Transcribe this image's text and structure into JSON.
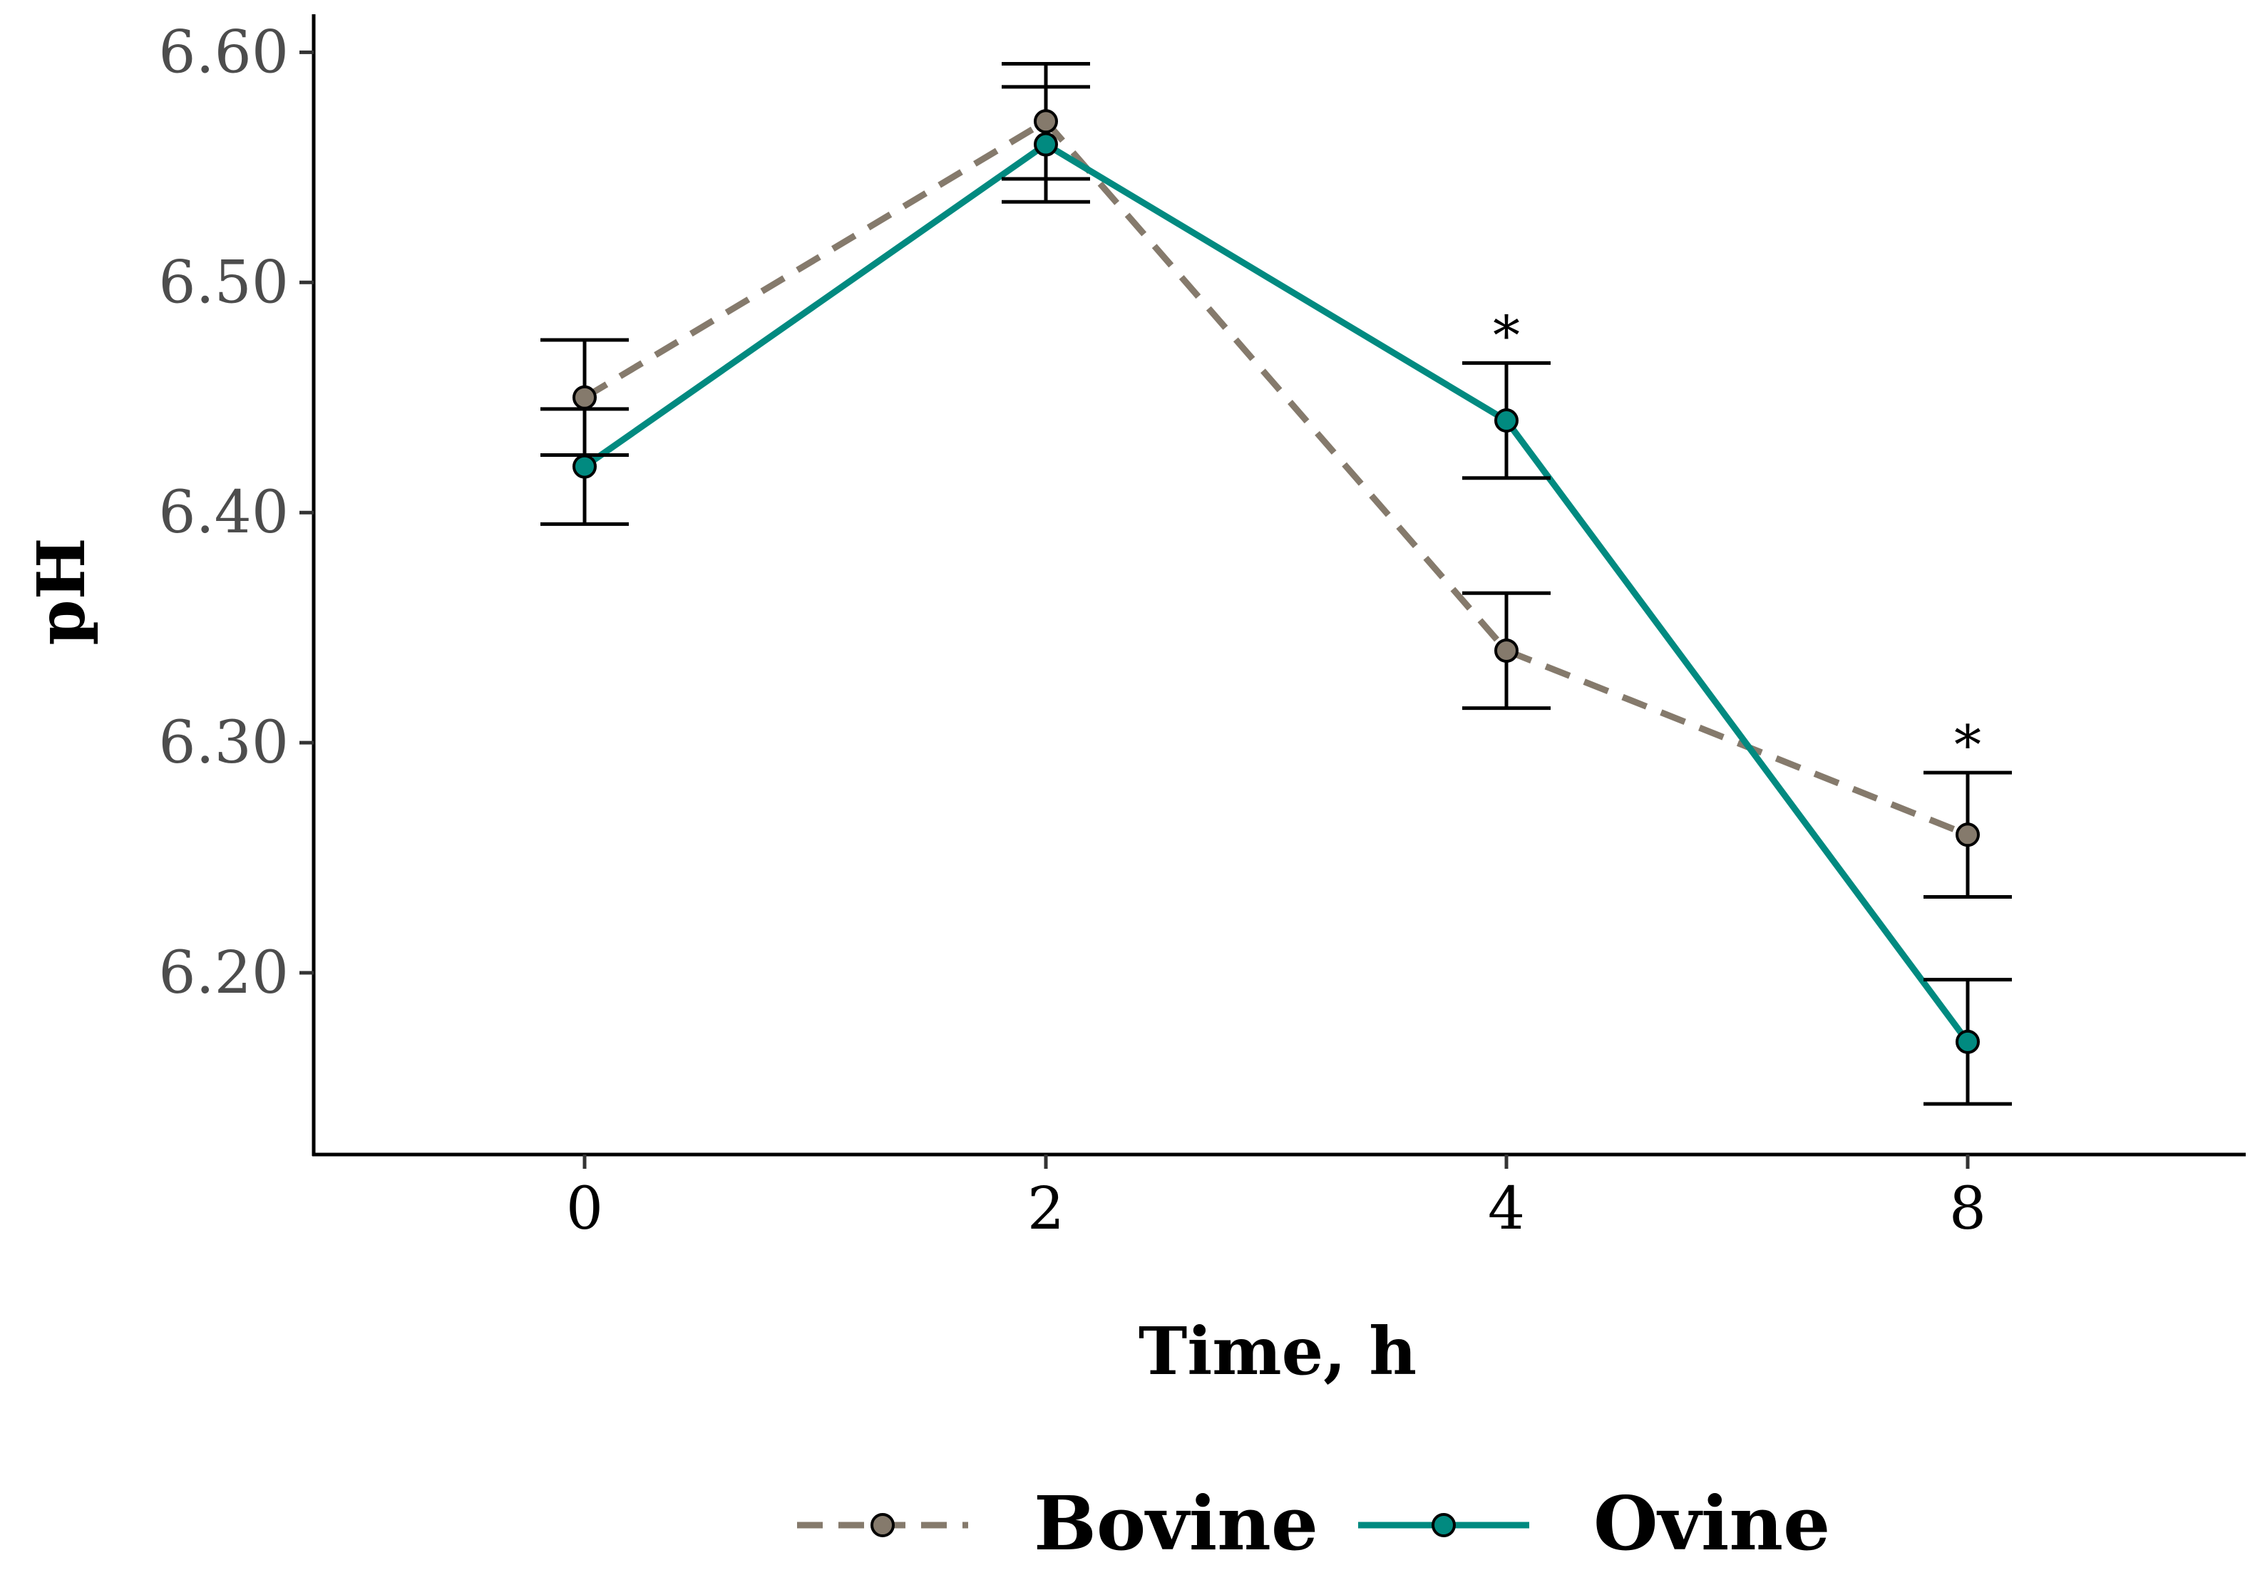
{
  "chart_data": {
    "type": "line",
    "xlabel": "Time, h",
    "ylabel": "pH",
    "categories": [
      "0",
      "2",
      "4",
      "8"
    ],
    "ylim": [
      6.1,
      6.62
    ],
    "yticks": [
      "6.20",
      "6.30",
      "6.40",
      "6.50",
      "6.60"
    ],
    "grid": false,
    "legend_position": "bottom",
    "significance_markers": [
      {
        "category": "4",
        "label": "*"
      },
      {
        "category": "8",
        "label": "*"
      }
    ],
    "series": [
      {
        "name": "Bovine",
        "color": "#857a6c",
        "line_style": "dashed",
        "values": [
          6.45,
          6.57,
          6.34,
          6.26
        ],
        "error": [
          0.025,
          0.025,
          0.025,
          0.027
        ]
      },
      {
        "name": "Ovine",
        "color": "#018a80",
        "line_style": "solid",
        "values": [
          6.42,
          6.56,
          6.44,
          6.17
        ],
        "error": [
          0.025,
          0.025,
          0.025,
          0.027
        ]
      }
    ]
  }
}
